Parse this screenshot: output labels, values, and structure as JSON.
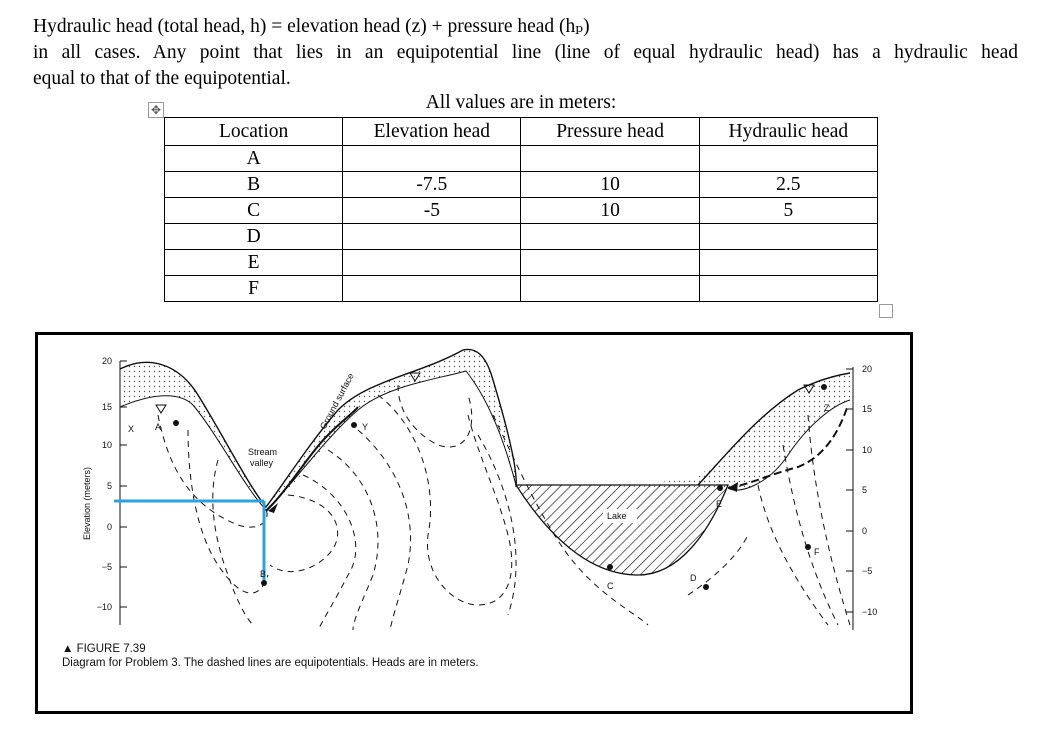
{
  "intro": {
    "line1": "Hydraulic head (total head, h) = elevation head (z) + pressure head (hₚ)",
    "line2": "in all cases. Any point that lies in an equipotential line (line of equal hydraulic head) has a hydraulic head",
    "line3": "equal to that of the equipotential."
  },
  "table_caption": "All values are in meters:",
  "table": {
    "headers": [
      "Location",
      "Elevation head",
      "Pressure head",
      "Hydraulic head"
    ],
    "rows": [
      [
        "A",
        "",
        "",
        ""
      ],
      [
        "B",
        "-7.5",
        "10",
        "2.5"
      ],
      [
        "C",
        "-5",
        "10",
        "5"
      ],
      [
        "D",
        "",
        "",
        ""
      ],
      [
        "E",
        "",
        "",
        ""
      ],
      [
        "F",
        "",
        "",
        ""
      ]
    ]
  },
  "handles": {
    "move_icon": "move-handle-icon",
    "move_glyph": "✥"
  },
  "figure": {
    "axis_title": "Elevation (meters)",
    "left_ticks": [
      "20",
      "15",
      "10",
      "5",
      "0",
      "−5",
      "−10"
    ],
    "right_ticks": [
      "20",
      "15",
      "10",
      "5",
      "0",
      "−5",
      "−10"
    ],
    "labels": {
      "X": "X",
      "A": "A",
      "Y": "Y",
      "B": "B",
      "C": "C",
      "D": "D",
      "E": "E",
      "F": "F",
      "Z": "Z",
      "stream_valley": "Stream\nvalley",
      "ground_surface": "Ground surface",
      "lake": "Lake"
    },
    "caption_title": "▲ FIGURE 7.39",
    "caption_text": "Diagram for Problem 3. The dashed lines are equipotentials. Heads are in meters.",
    "colors": {
      "annotation": "#29a3e0",
      "stroke": "#111111"
    }
  }
}
